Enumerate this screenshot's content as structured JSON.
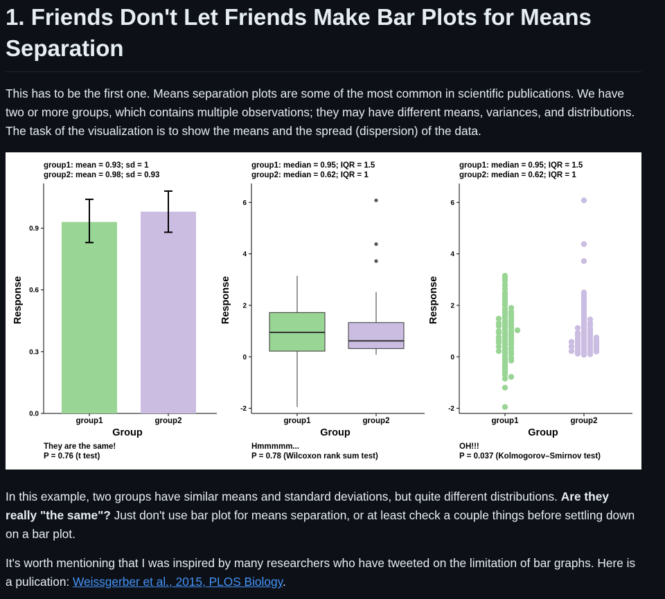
{
  "title": "1. Friends Don't Let Friends Make Bar Plots for Means Separation",
  "intro": "This has to be the first one. Means separation plots are some of the most common in scientific publications. We have two or more groups, which contains multiple observations; they may have different means, variances, and distributions. The task of the visualization is to show the means and the spread (dispersion) of the data.",
  "example": {
    "text_before": "In this example, two groups have similar means and standard deviations, but quite different distributions. ",
    "bold": "Are they really \"the same\"?",
    "text_after": " Just don't use bar plot for means separation, or at least check a couple things before settling down on a bar plot."
  },
  "inspired": {
    "text": "It's worth mentioning that I was inspired by many researchers who have tweeted on the limitation of bar graphs. Here is a pulication: ",
    "link": "Weissgerber et al., 2015, PLOS Biology",
    "end": "."
  },
  "colors": {
    "group1": "#99d594",
    "group2": "#cbbde2",
    "link": "#4493f8"
  },
  "chart_data": [
    {
      "type": "bar",
      "title": "group1: mean = 0.93; sd = 1",
      "subtitle": "group2: mean = 0.98; sd = 0.93",
      "categories": [
        "group1",
        "group2"
      ],
      "values": [
        0.93,
        0.98
      ],
      "error_low": [
        0.83,
        0.88
      ],
      "error_high": [
        1.04,
        1.08
      ],
      "xlabel": "Group",
      "ylabel": "Response",
      "ylim": [
        0,
        1.1
      ],
      "yticks": [
        "0.0",
        "0.3",
        "0.6",
        "0.9"
      ],
      "yticks_values": [
        0,
        0.3,
        0.6,
        0.9
      ],
      "caption1": "They are the same!",
      "caption2": "P = 0.76 (t test)"
    },
    {
      "type": "box",
      "title": "group1: median = 0.95; IQR = 1.5",
      "subtitle": "group2: median = 0.62; IQR = 1",
      "categories": [
        "group1",
        "group2"
      ],
      "boxes": [
        {
          "min": -1.95,
          "q1": 0.22,
          "median": 0.95,
          "q3": 1.72,
          "max": 3.15,
          "outliers": []
        },
        {
          "min": 0.08,
          "q1": 0.32,
          "median": 0.62,
          "q3": 1.33,
          "max": 2.52,
          "outliers": [
            3.72,
            4.38,
            6.08
          ]
        }
      ],
      "xlabel": "Group",
      "ylabel": "Response",
      "ylim": [
        -2.2,
        6.6
      ],
      "yticks": [
        "-2",
        "0",
        "2",
        "4",
        "6"
      ],
      "yticks_values": [
        -2,
        0,
        2,
        4,
        6
      ],
      "caption1": "Hmmmmm...",
      "caption2": "P = 0.78 (Wilcoxon rank sum test)"
    },
    {
      "type": "scatter",
      "title": "group1: median = 0.95; IQR = 1.5",
      "subtitle": "group2: median = 0.62; IQR = 1",
      "categories": [
        "group1",
        "group2"
      ],
      "series": [
        {
          "name": "group1",
          "values": [
            -1.95,
            -1.2,
            -0.85,
            -0.78,
            -0.7,
            -0.6,
            -0.5,
            -0.45,
            -0.38,
            -0.3,
            -0.22,
            -0.15,
            -0.1,
            -0.05,
            0,
            0.05,
            0.1,
            0.15,
            0.18,
            0.22,
            0.25,
            0.3,
            0.33,
            0.36,
            0.4,
            0.44,
            0.48,
            0.5,
            0.53,
            0.56,
            0.6,
            0.63,
            0.66,
            0.7,
            0.73,
            0.76,
            0.8,
            0.83,
            0.86,
            0.9,
            0.93,
            0.95,
            0.98,
            1.0,
            1.03,
            1.06,
            1.1,
            1.13,
            1.16,
            1.2,
            1.23,
            1.26,
            1.3,
            1.33,
            1.36,
            1.4,
            1.44,
            1.48,
            1.52,
            1.56,
            1.6,
            1.65,
            1.7,
            1.75,
            1.8,
            1.85,
            1.9,
            2.0,
            2.1,
            2.2,
            2.3,
            2.4,
            2.5,
            2.65,
            2.8,
            2.95,
            3.05,
            3.15
          ]
        },
        {
          "name": "group2",
          "values": [
            0.08,
            0.1,
            0.12,
            0.14,
            0.16,
            0.18,
            0.2,
            0.22,
            0.24,
            0.26,
            0.28,
            0.3,
            0.32,
            0.34,
            0.36,
            0.38,
            0.4,
            0.42,
            0.44,
            0.46,
            0.48,
            0.5,
            0.52,
            0.54,
            0.56,
            0.58,
            0.6,
            0.62,
            0.64,
            0.66,
            0.68,
            0.7,
            0.72,
            0.75,
            0.78,
            0.81,
            0.84,
            0.87,
            0.9,
            0.93,
            0.96,
            1.0,
            1.04,
            1.08,
            1.12,
            1.16,
            1.2,
            1.25,
            1.3,
            1.35,
            1.4,
            1.45,
            1.5,
            1.6,
            1.7,
            1.8,
            1.9,
            2.0,
            2.1,
            2.2,
            2.3,
            2.4,
            2.5,
            3.72,
            4.38,
            6.08
          ]
        }
      ],
      "xlabel": "Group",
      "ylabel": "Response",
      "ylim": [
        -2.2,
        6.6
      ],
      "yticks": [
        "-2",
        "0",
        "2",
        "4",
        "6"
      ],
      "yticks_values": [
        -2,
        0,
        2,
        4,
        6
      ],
      "caption1": "OH!!!",
      "caption2": "P = 0.037 (Kolmogorov–Smirnov test)"
    }
  ]
}
